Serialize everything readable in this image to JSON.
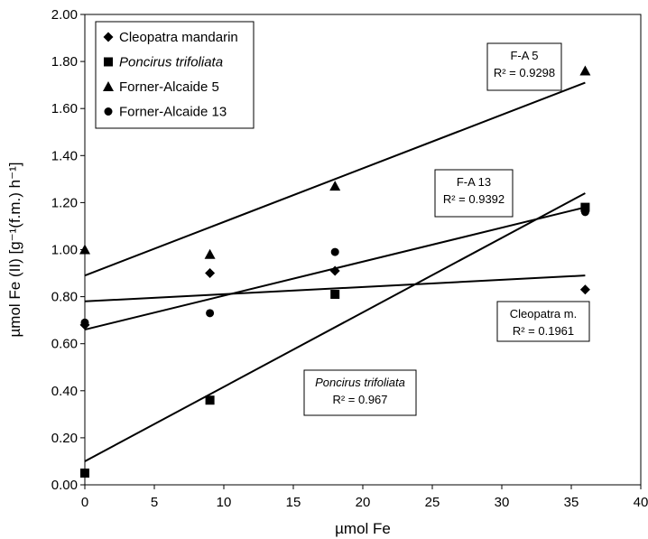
{
  "chart_data": {
    "type": "scatter",
    "xlabel": "µmol Fe",
    "ylabel": "µmol Fe (II) [g⁻¹(f.m.) h⁻¹]",
    "xlim": [
      0,
      40
    ],
    "ylim": [
      0,
      2.0
    ],
    "xticks": [
      "0",
      "5",
      "10",
      "15",
      "20",
      "25",
      "30",
      "35",
      "40"
    ],
    "yticks": [
      "0.00",
      "0.20",
      "0.40",
      "0.60",
      "0.80",
      "1.00",
      "1.20",
      "1.40",
      "1.60",
      "1.80",
      "2.00"
    ],
    "grid": false,
    "legend_position": "top-left",
    "series": [
      {
        "name": "Cleopatra mandarin",
        "marker": "diamond",
        "x": [
          0,
          9,
          18,
          36
        ],
        "y": [
          0.68,
          0.9,
          0.91,
          0.83
        ],
        "trend": {
          "y_at_0": 0.78,
          "y_at_36": 0.89
        },
        "annotation": {
          "lines": [
            "Cleopatra m.",
            "R² = 0.1961"
          ],
          "italic": false
        }
      },
      {
        "name": "Poncirus trifoliata",
        "marker": "square",
        "italic": true,
        "x": [
          0,
          9,
          18,
          36
        ],
        "y": [
          0.05,
          0.36,
          0.81,
          1.18
        ],
        "trend": {
          "y_at_0": 0.1,
          "y_at_36": 1.24
        },
        "annotation": {
          "lines": [
            "Poncirus trifoliata",
            "R² = 0.967"
          ],
          "italic": true
        }
      },
      {
        "name": "Forner-Alcaide 5",
        "marker": "triangle",
        "x": [
          0,
          9,
          18,
          36
        ],
        "y": [
          1.0,
          0.98,
          1.27,
          1.76
        ],
        "trend": {
          "y_at_0": 0.89,
          "y_at_36": 1.71
        },
        "annotation": {
          "lines": [
            "F-A 5",
            "R² = 0.9298"
          ],
          "italic": false
        }
      },
      {
        "name": "Forner-Alcaide 13",
        "marker": "circle",
        "x": [
          0,
          9,
          18,
          36
        ],
        "y": [
          0.69,
          0.73,
          0.99,
          1.16
        ],
        "trend": {
          "y_at_0": 0.66,
          "y_at_36": 1.18
        },
        "annotation": {
          "lines": [
            "F-A 13",
            "R² = 0.9392"
          ],
          "italic": false
        }
      }
    ]
  }
}
